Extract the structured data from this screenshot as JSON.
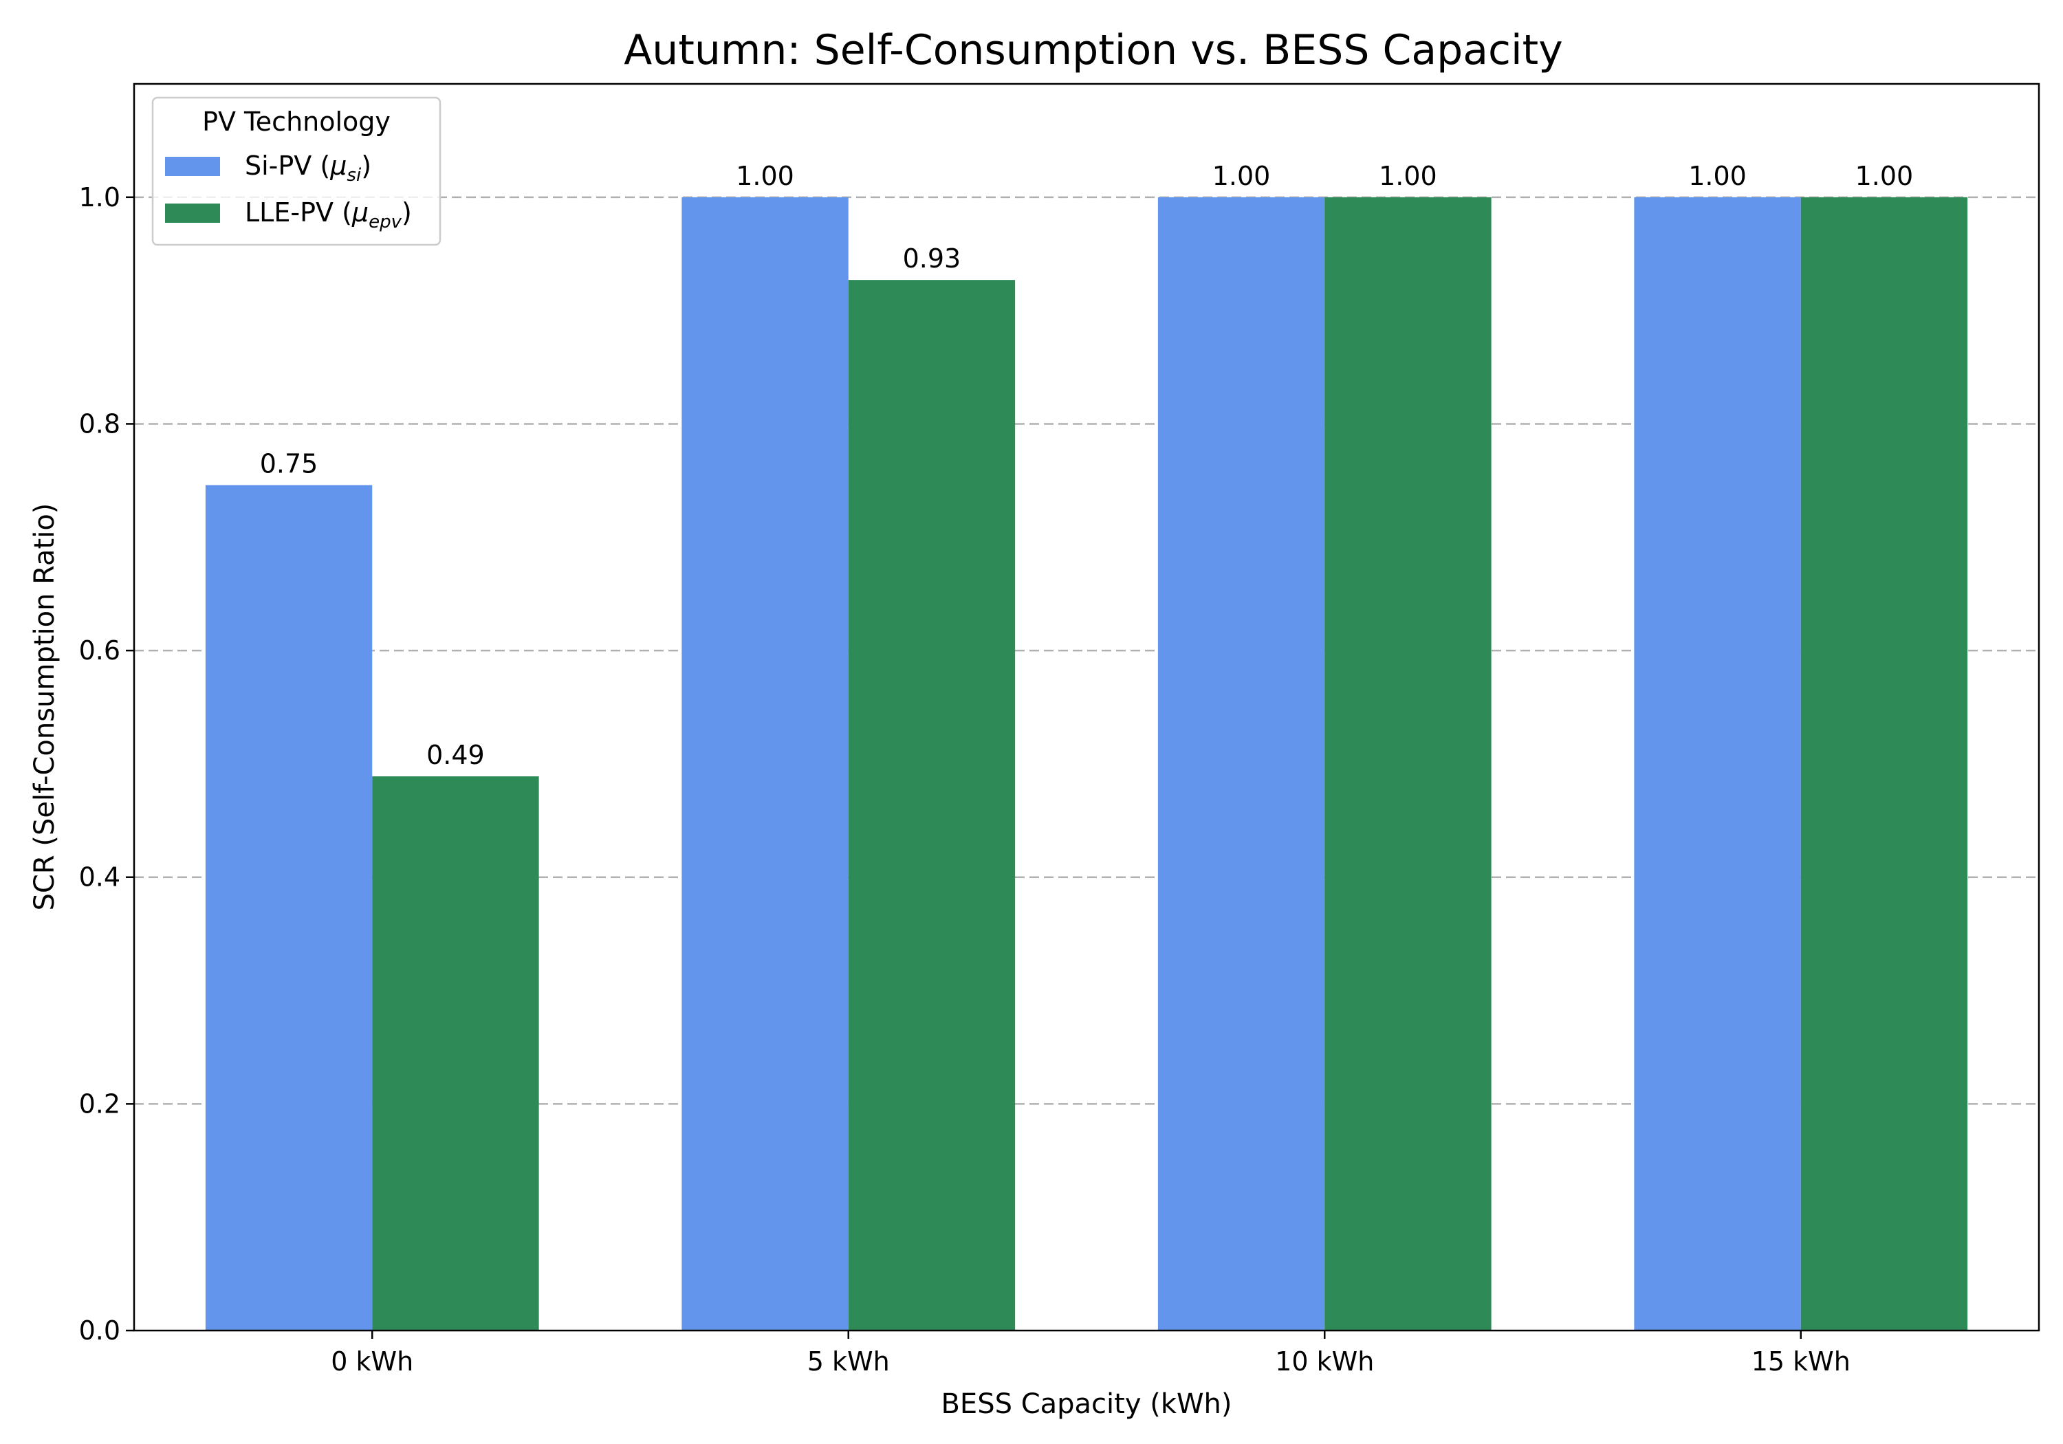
{
  "chart_data": {
    "type": "bar",
    "title": "Autumn: Self-Consumption vs. BESS Capacity",
    "xlabel": "BESS Capacity (kWh)",
    "ylabel": "SCR (Self-Consumption Ratio)",
    "categories": [
      "0 kWh",
      "5 kWh",
      "10 kWh",
      "15 kWh"
    ],
    "ylim": [
      0,
      1.1
    ],
    "yticks": [
      0.0,
      0.2,
      0.4,
      0.6,
      0.8,
      1.0
    ],
    "ytick_labels": [
      "0.0",
      "0.2",
      "0.4",
      "0.6",
      "0.8",
      "1.0"
    ],
    "grid": true,
    "grid_axis": "y",
    "legend": {
      "title": "PV Technology",
      "placement": "top-left"
    },
    "series": [
      {
        "name": "Si-PV",
        "symbol_base": "μ",
        "symbol_sub": "si",
        "color": "#6495ED",
        "values": [
          0.746,
          1.0,
          1.0,
          1.0
        ],
        "labels": [
          "0.75",
          "1.00",
          "1.00",
          "1.00"
        ]
      },
      {
        "name": "LLE-PV",
        "symbol_base": "μ",
        "symbol_sub": "epv",
        "color": "#2E8B57",
        "values": [
          0.489,
          0.927,
          1.0,
          1.0
        ],
        "labels": [
          "0.49",
          "0.93",
          "1.00",
          "1.00"
        ]
      }
    ]
  }
}
